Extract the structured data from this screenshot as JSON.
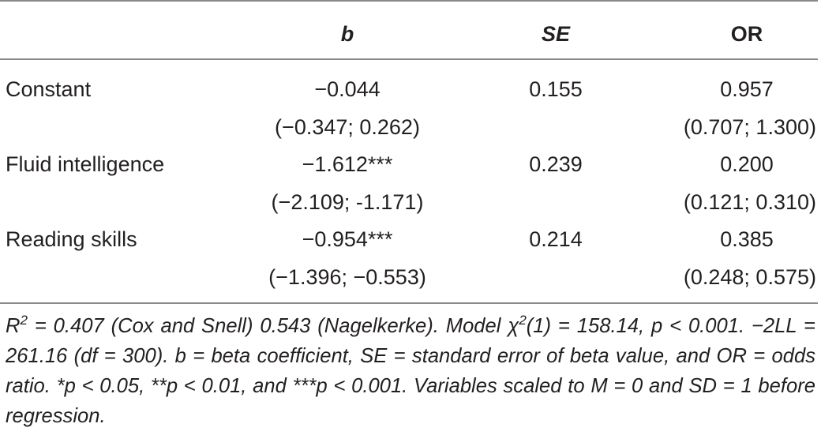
{
  "table": {
    "headers": {
      "b": "b",
      "se": "SE",
      "or": "OR"
    },
    "rows": [
      {
        "label": "Constant",
        "b": "−0.044",
        "se": "0.155",
        "or": "0.957",
        "b_ci": "(−0.347; 0.262)",
        "or_ci": "(0.707; 1.300)"
      },
      {
        "label": "Fluid intelligence",
        "b": "−1.612***",
        "se": "0.239",
        "or": "0.200",
        "b_ci": "(−2.109; -1.171)",
        "or_ci": "(0.121; 0.310)"
      },
      {
        "label": "Reading skills",
        "b": "−0.954***",
        "se": "0.214",
        "or": "0.385",
        "b_ci": "(−1.396; −0.553)",
        "or_ci": "(0.248; 0.575)"
      }
    ]
  },
  "note": {
    "r_symbol": "R",
    "r_exp": "2",
    "part1": " = 0.407 (Cox and Snell) 0.543 (Nagelkerke). Model χ",
    "chi_exp": "2",
    "part2": "(1) = 158.14, p < 0.001. −2LL = 261.16 (df = 300). b = beta coefficient, SE = standard error of beta value, and OR = odds ratio. *p < 0.05, **p < 0.01, and ***p < 0.001. Variables scaled to M = 0 and SD = 1 before regression."
  }
}
